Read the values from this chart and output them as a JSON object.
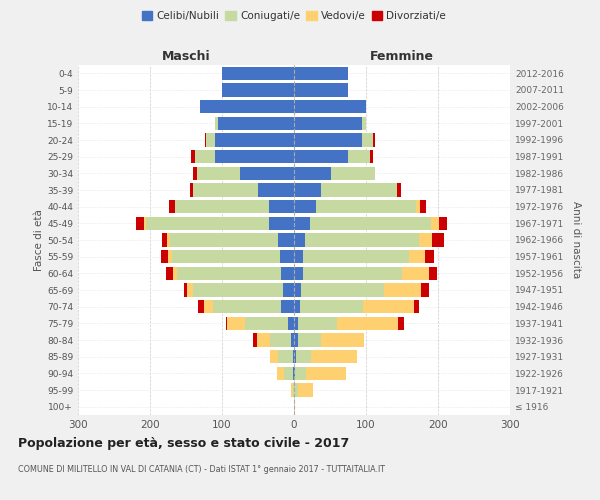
{
  "age_groups": [
    "100+",
    "95-99",
    "90-94",
    "85-89",
    "80-84",
    "75-79",
    "70-74",
    "65-69",
    "60-64",
    "55-59",
    "50-54",
    "45-49",
    "40-44",
    "35-39",
    "30-34",
    "25-29",
    "20-24",
    "15-19",
    "10-14",
    "5-9",
    "0-4"
  ],
  "birth_years": [
    "≤ 1916",
    "1917-1921",
    "1922-1926",
    "1927-1931",
    "1932-1936",
    "1937-1941",
    "1942-1946",
    "1947-1951",
    "1952-1956",
    "1957-1961",
    "1962-1966",
    "1967-1971",
    "1972-1976",
    "1977-1981",
    "1982-1986",
    "1987-1991",
    "1992-1996",
    "1997-2001",
    "2002-2006",
    "2007-2011",
    "2012-2016"
  ],
  "male": {
    "celibi": [
      0,
      0,
      2,
      2,
      4,
      8,
      18,
      15,
      18,
      20,
      22,
      35,
      35,
      50,
      75,
      110,
      110,
      105,
      130,
      100,
      100
    ],
    "coniugati": [
      0,
      2,
      12,
      20,
      30,
      60,
      95,
      125,
      145,
      150,
      150,
      170,
      130,
      90,
      60,
      28,
      12,
      5,
      0,
      0,
      0
    ],
    "vedovi": [
      0,
      2,
      10,
      12,
      18,
      25,
      12,
      8,
      5,
      5,
      4,
      4,
      0,
      0,
      0,
      0,
      0,
      0,
      0,
      0,
      0
    ],
    "divorziati": [
      0,
      0,
      0,
      0,
      5,
      2,
      8,
      5,
      10,
      10,
      8,
      10,
      8,
      5,
      5,
      5,
      2,
      0,
      0,
      0,
      0
    ]
  },
  "female": {
    "nubili": [
      0,
      0,
      2,
      3,
      5,
      5,
      8,
      10,
      12,
      12,
      15,
      22,
      30,
      38,
      52,
      75,
      95,
      95,
      100,
      75,
      75
    ],
    "coniugate": [
      0,
      5,
      15,
      20,
      32,
      55,
      88,
      115,
      138,
      148,
      158,
      168,
      140,
      105,
      60,
      30,
      15,
      5,
      0,
      0,
      0
    ],
    "vedove": [
      2,
      22,
      55,
      65,
      60,
      85,
      70,
      52,
      38,
      22,
      18,
      12,
      5,
      0,
      0,
      0,
      0,
      0,
      0,
      0,
      0
    ],
    "divorziate": [
      0,
      0,
      0,
      0,
      0,
      8,
      8,
      10,
      10,
      12,
      18,
      10,
      8,
      5,
      0,
      5,
      2,
      0,
      0,
      0,
      0
    ]
  },
  "colors": {
    "celibi": "#4472C4",
    "coniugati": "#C5D9A0",
    "vedovi": "#FFD070",
    "divorziati": "#CC0000"
  },
  "xlim": 300,
  "title": "Popolazione per età, sesso e stato civile - 2017",
  "subtitle": "COMUNE DI MILITELLO IN VAL DI CATANIA (CT) - Dati ISTAT 1° gennaio 2017 - TUTTAITALIA.IT",
  "ylabel_left": "Fasce di età",
  "ylabel_right": "Anni di nascita",
  "xlabel_left": "Maschi",
  "xlabel_right": "Femmine",
  "bg_color": "#f0f0f0",
  "plot_bg": "#ffffff"
}
